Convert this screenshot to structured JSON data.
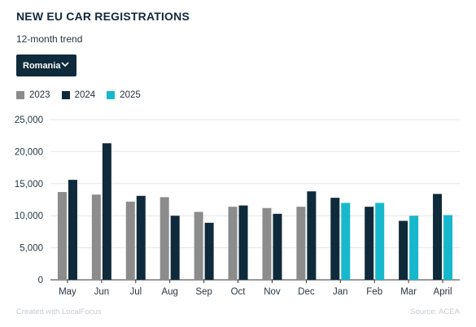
{
  "header": {
    "title": "NEW EU CAR REGISTRATIONS",
    "subtitle": "12-month trend"
  },
  "selector": {
    "selected": "Romania",
    "icon": "chevron-down-icon"
  },
  "colors": {
    "2023": "#8c8c8c",
    "2024": "#0f2a3a",
    "2025": "#17b8cc",
    "grid": "#e3e6e8",
    "axis": "#333333"
  },
  "footer": {
    "credit": "Created with LocalFocus",
    "source": "Source:  ACEA"
  },
  "chart_data": {
    "type": "bar",
    "categories": [
      "May",
      "Jun",
      "Jul",
      "Aug",
      "Sep",
      "Oct",
      "Nov",
      "Dec",
      "Jan",
      "Feb",
      "Mar",
      "April"
    ],
    "series": [
      {
        "name": "2023",
        "values": [
          13700,
          13300,
          12200,
          12900,
          10600,
          11400,
          11200,
          11400,
          null,
          null,
          null,
          null
        ]
      },
      {
        "name": "2024",
        "values": [
          15600,
          21300,
          13100,
          10000,
          8900,
          11600,
          10300,
          13800,
          12800,
          11400,
          9200,
          13400
        ]
      },
      {
        "name": "2025",
        "values": [
          null,
          null,
          null,
          null,
          null,
          null,
          null,
          null,
          12000,
          12000,
          10000,
          10100
        ]
      }
    ],
    "ylim": [
      0,
      25000
    ],
    "yticks": [
      0,
      5000,
      10000,
      15000,
      20000,
      25000
    ],
    "ytick_labels": [
      "0",
      "5,000",
      "10,000",
      "15,000",
      "20,000",
      "25,000"
    ],
    "grid": true,
    "legend_position": "top-left"
  }
}
